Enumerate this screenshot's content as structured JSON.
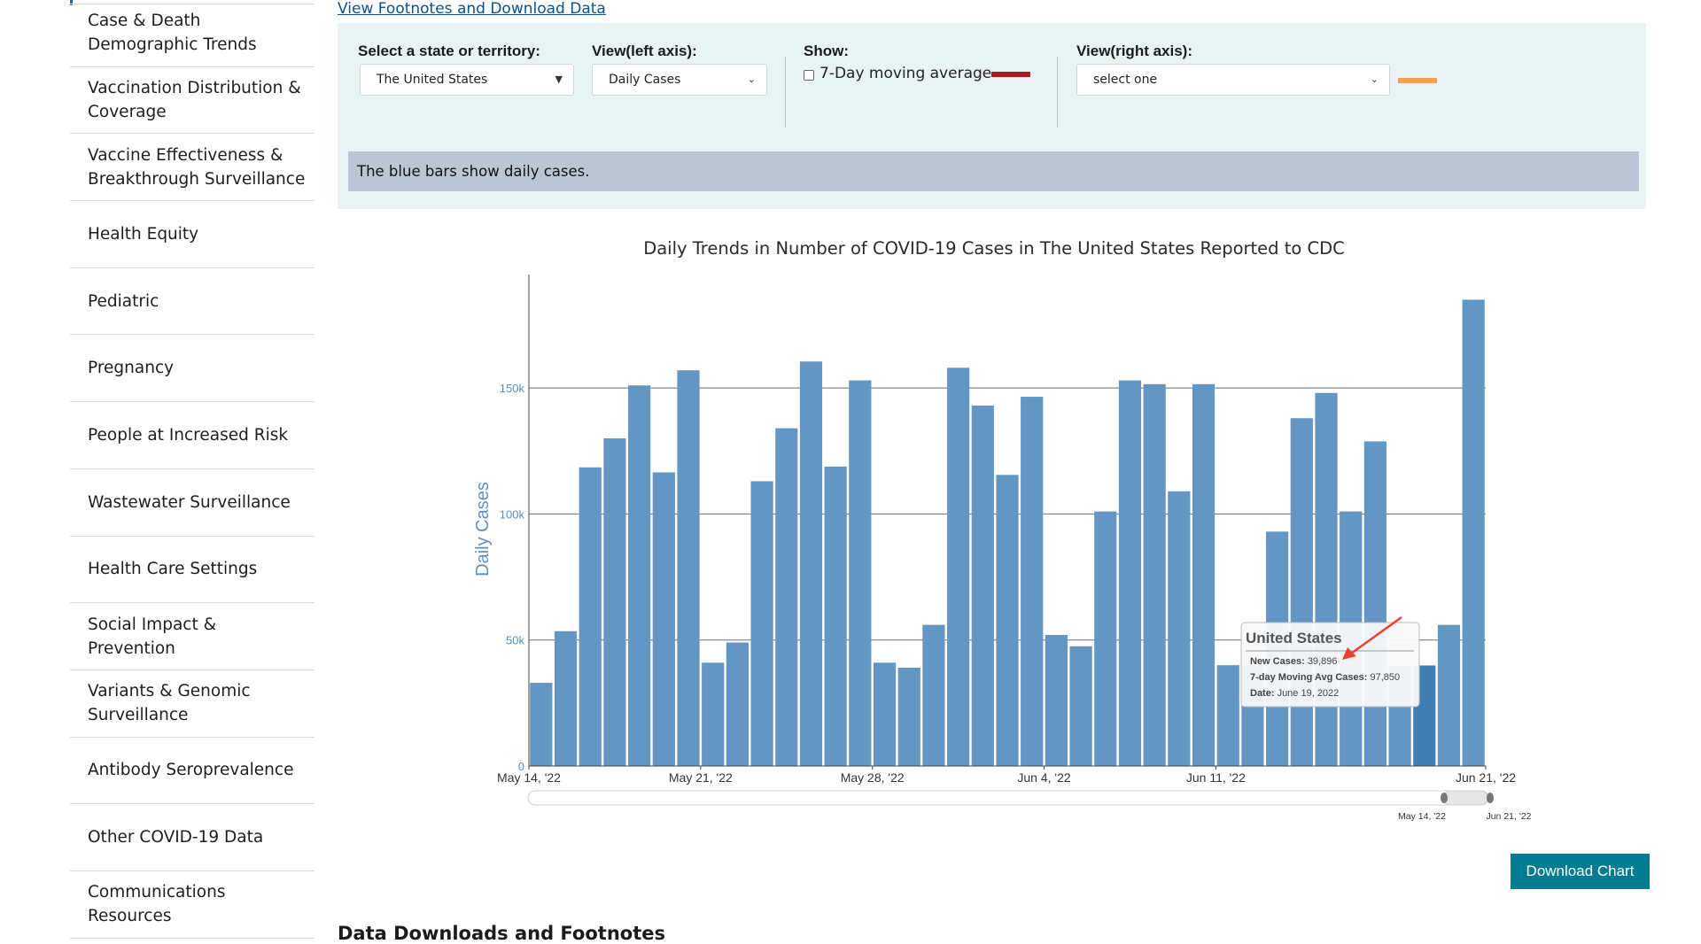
{
  "sidebar": {
    "items": [
      {
        "label": "Case & Death Demographic Trends"
      },
      {
        "label": "Vaccination Distribution & Coverage"
      },
      {
        "label": "Vaccine Effectiveness & Breakthrough Surveillance"
      },
      {
        "label": "Health Equity"
      },
      {
        "label": "Pediatric"
      },
      {
        "label": "Pregnancy"
      },
      {
        "label": "People at Increased Risk"
      },
      {
        "label": "Wastewater Surveillance"
      },
      {
        "label": "Health Care Settings"
      },
      {
        "label": "Social Impact & Prevention"
      },
      {
        "label": "Variants & Genomic Surveillance"
      },
      {
        "label": "Antibody Seroprevalence"
      },
      {
        "label": "Other COVID-19 Data"
      },
      {
        "label": "Communications Resources"
      }
    ]
  },
  "main": {
    "footnote_link": "View Footnotes and Download Data",
    "controls": {
      "state_label": "Select a state or territory:",
      "state_value": "The United States",
      "left_axis_label": "View(left axis):",
      "left_axis_value": "Daily Cases",
      "show_label": "Show:",
      "moving_avg_label": "7-Day moving average",
      "moving_avg_color": "#a61e22",
      "right_axis_label": "View(right axis):",
      "right_axis_value": "select one",
      "right_axis_color": "#f5a04d"
    },
    "info_text": "The blue bars show daily cases.",
    "download_button": "Download Chart",
    "next_section_heading": "Data Downloads and Footnotes"
  },
  "tooltip": {
    "title": "United States",
    "new_cases_label": "New Cases:",
    "new_cases_value": "39,896",
    "avg_label": "7-day Moving Avg Cases:",
    "avg_value": "97,850",
    "date_label": "Date:",
    "date_value": "June 19, 2022"
  },
  "chart_data": {
    "type": "bar",
    "title": "Daily Trends in Number of COVID-19 Cases in The United States Reported to CDC",
    "ylabel": "Daily Cases",
    "xlabel": "",
    "ylim": [
      0,
      195000
    ],
    "y_ticks": [
      0,
      50000,
      100000,
      150000
    ],
    "y_tick_labels": [
      "0",
      "50k",
      "100k",
      "150k"
    ],
    "grid": "horizontal",
    "bar_color": "#6496c3",
    "highlight_color": "#3f7eb5",
    "highlight_index": 36,
    "x_tick_labels": [
      {
        "index": 0,
        "label": "May 14, '22"
      },
      {
        "index": 7,
        "label": "May 21, '22"
      },
      {
        "index": 14,
        "label": "May 28, '22"
      },
      {
        "index": 21,
        "label": "Jun 4, '22"
      },
      {
        "index": 28,
        "label": "Jun 11, '22"
      },
      {
        "index": 38,
        "label": "Jun 21, '22"
      }
    ],
    "categories": [
      "2022-05-14",
      "2022-05-15",
      "2022-05-16",
      "2022-05-17",
      "2022-05-18",
      "2022-05-19",
      "2022-05-20",
      "2022-05-21",
      "2022-05-22",
      "2022-05-23",
      "2022-05-24",
      "2022-05-25",
      "2022-05-26",
      "2022-05-27",
      "2022-05-28",
      "2022-05-29",
      "2022-05-30",
      "2022-05-31",
      "2022-06-01",
      "2022-06-02",
      "2022-06-03",
      "2022-06-04",
      "2022-06-05",
      "2022-06-06",
      "2022-06-07",
      "2022-06-08",
      "2022-06-09",
      "2022-06-10",
      "2022-06-11",
      "2022-06-12",
      "2022-06-13",
      "2022-06-14",
      "2022-06-15",
      "2022-06-16",
      "2022-06-17",
      "2022-06-18",
      "2022-06-19",
      "2022-06-20",
      "2022-06-21"
    ],
    "values": [
      33000,
      53500,
      118500,
      130000,
      151000,
      116500,
      157000,
      41000,
      49000,
      113000,
      134000,
      160500,
      118800,
      153000,
      41000,
      39000,
      56000,
      158000,
      143000,
      115500,
      146500,
      52000,
      47500,
      101000,
      153000,
      151500,
      109000,
      151500,
      40000,
      40000,
      93000,
      138000,
      148000,
      101000,
      128800,
      40000,
      39896,
      56000,
      185000
    ],
    "range_slider": {
      "start_label": "May 14, '22",
      "end_label": "Jun 21, '22"
    }
  }
}
